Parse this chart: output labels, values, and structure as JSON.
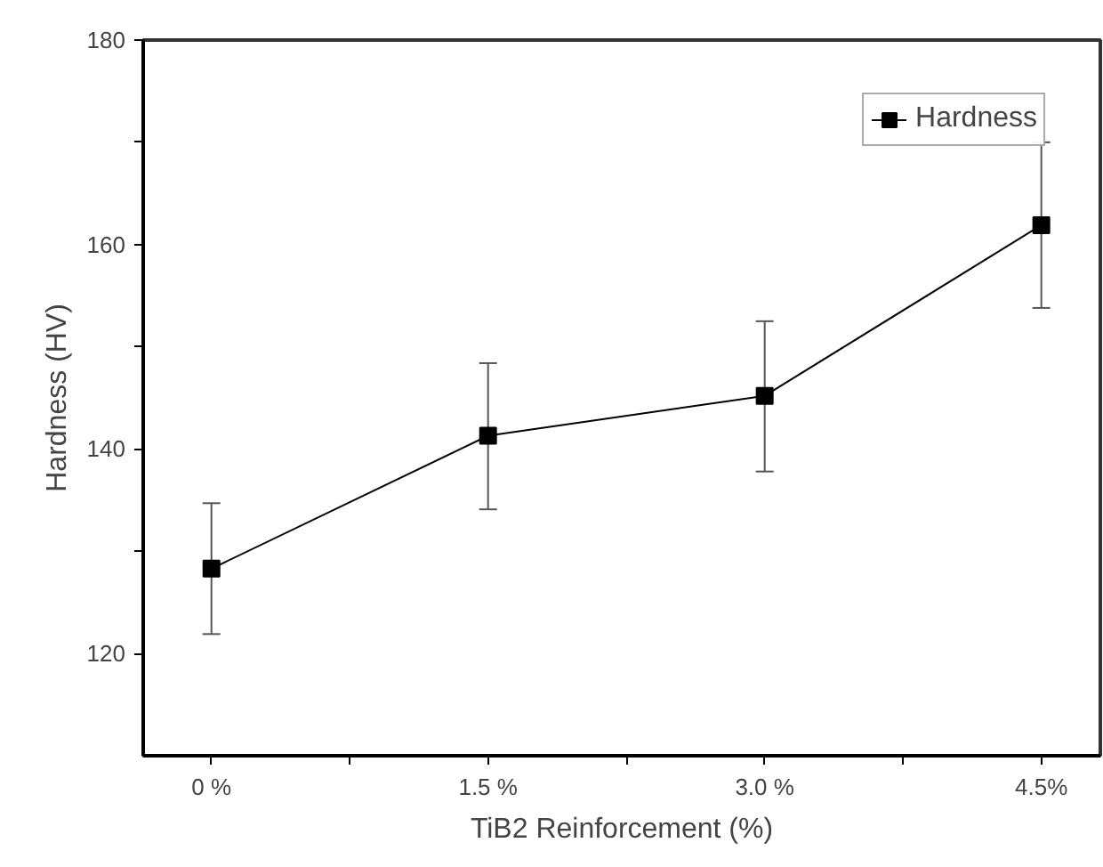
{
  "chart_data": {
    "type": "line",
    "xlabel": "TiB2 Reinforcement (%)",
    "ylabel": "Hardness (HV)",
    "x": [
      0,
      1.5,
      3.0,
      4.5
    ],
    "series": [
      {
        "name": "Hardness",
        "color": "#000000",
        "values": [
          128.3,
          141.3,
          145.2,
          161.9
        ],
        "errors": [
          [
            121.9,
            134.7
          ],
          [
            134.1,
            148.4
          ],
          [
            137.8,
            152.5
          ],
          [
            153.8,
            170.0
          ]
        ]
      }
    ],
    "xlim": [
      -0.37,
      4.82
    ],
    "xticks": [
      {
        "value": 0,
        "label": "0 %"
      },
      {
        "value": 0.75,
        "label": null
      },
      {
        "value": 1.5,
        "label": "1.5 %"
      },
      {
        "value": 2.25,
        "label": null
      },
      {
        "value": 3.0,
        "label": "3.0 %"
      },
      {
        "value": 3.75,
        "label": null
      },
      {
        "value": 4.5,
        "label": "4.5%"
      }
    ],
    "ylim": [
      110,
      180
    ],
    "yticks": [
      120,
      {
        "value": 130,
        "label": null
      },
      140,
      {
        "value": 150,
        "label": null
      },
      160,
      {
        "value": 170,
        "label": null
      },
      180
    ],
    "grid": false,
    "legend": "top right",
    "marker": "square",
    "line_style": "solid"
  }
}
